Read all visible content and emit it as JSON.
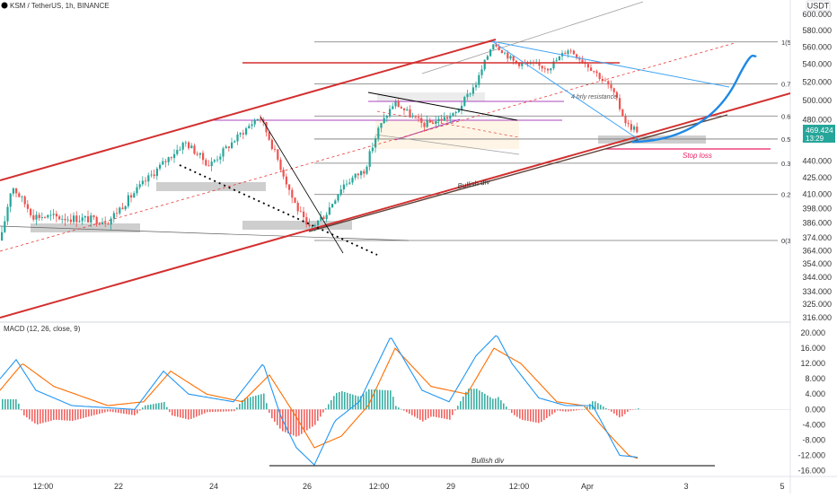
{
  "header": {
    "symbol_line": "KSM / TetherUS, 1h, BINANCE",
    "currency": "USDT"
  },
  "price_badge": {
    "price": "469.424",
    "countdown": "13:29",
    "color": "#26a69a"
  },
  "colors": {
    "up_candle": "#26a69a",
    "down_candle": "#ef5350",
    "channel": "#d32f2f",
    "trendline_blue": "#42a5f5",
    "projection": "#1e88e5",
    "macd_line": "#2196f3",
    "signal_line": "#ff6d00",
    "resistance": "#ab47bc",
    "stop_loss": "#e91e63"
  },
  "chart_data": [
    {
      "type": "candlestick",
      "panel": "price",
      "title": "KSM / TetherUS, 1h, BINANCE",
      "currency": "USDT",
      "y_axis": {
        "range": [
          312,
          612
        ],
        "ticks": [
          600,
          580,
          560,
          540,
          520,
          500,
          480,
          460,
          440,
          425,
          410,
          398,
          386,
          374,
          364,
          354,
          344,
          334,
          325,
          316
        ],
        "scale": "log"
      },
      "x_axis": {
        "ticks": [
          "12:00",
          "22",
          "24",
          "26",
          "12:00",
          "29",
          "12:00",
          "Apr",
          "3",
          "5"
        ]
      },
      "price_path_keypoints": [
        [
          0,
          372
        ],
        [
          12,
          418
        ],
        [
          36,
          392
        ],
        [
          120,
          388
        ],
        [
          205,
          458
        ],
        [
          232,
          436
        ],
        [
          288,
          484
        ],
        [
          325,
          406
        ],
        [
          342,
          380
        ],
        [
          362,
          394
        ],
        [
          380,
          418
        ],
        [
          405,
          432
        ],
        [
          420,
          470
        ],
        [
          438,
          498
        ],
        [
          470,
          475
        ],
        [
          505,
          485
        ],
        [
          530,
          520
        ],
        [
          548,
          566
        ],
        [
          572,
          542
        ],
        [
          610,
          536
        ],
        [
          632,
          558
        ],
        [
          660,
          533
        ],
        [
          680,
          512
        ],
        [
          697,
          475
        ],
        [
          710,
          469.4
        ]
      ],
      "fibonacci": [
        {
          "label": "1(566",
          "level": 566
        },
        {
          "label": "0.786",
          "level": 518
        },
        {
          "label": "0.618",
          "level": 484
        },
        {
          "label": "0.5(4",
          "level": 461
        },
        {
          "label": "0.382",
          "level": 438
        },
        {
          "label": "0.236",
          "level": 410
        },
        {
          "label": "0(372",
          "level": 372
        }
      ],
      "annotations": [
        "4 hrly resistance",
        "Stop loss",
        "Bullish div"
      ]
    },
    {
      "type": "macd",
      "panel": "indicator",
      "title": "MACD (12, 26, close, 9)",
      "y_axis": {
        "range": [
          -17,
          22
        ],
        "ticks": [
          20,
          16,
          12,
          8,
          4,
          0,
          -4,
          -8,
          -12,
          -16
        ]
      },
      "macd_keypoints": [
        [
          0,
          8
        ],
        [
          18,
          13
        ],
        [
          40,
          5
        ],
        [
          80,
          1
        ],
        [
          150,
          0
        ],
        [
          182,
          10
        ],
        [
          210,
          4
        ],
        [
          260,
          2
        ],
        [
          293,
          12
        ],
        [
          313,
          -2
        ],
        [
          330,
          -10
        ],
        [
          350,
          -14.5
        ],
        [
          373,
          -3
        ],
        [
          400,
          2
        ],
        [
          435,
          19
        ],
        [
          470,
          5
        ],
        [
          500,
          2
        ],
        [
          530,
          14
        ],
        [
          553,
          19.5
        ],
        [
          570,
          12
        ],
        [
          600,
          3
        ],
        [
          630,
          1
        ],
        [
          660,
          1
        ],
        [
          690,
          -12
        ],
        [
          710,
          -12.5
        ]
      ],
      "signal_keypoints": [
        [
          0,
          5
        ],
        [
          25,
          12
        ],
        [
          60,
          6
        ],
        [
          120,
          1
        ],
        [
          160,
          2
        ],
        [
          190,
          10
        ],
        [
          230,
          4
        ],
        [
          270,
          2
        ],
        [
          300,
          9
        ],
        [
          330,
          -2
        ],
        [
          350,
          -10
        ],
        [
          380,
          -7
        ],
        [
          410,
          1
        ],
        [
          440,
          16
        ],
        [
          480,
          6
        ],
        [
          520,
          4
        ],
        [
          550,
          16
        ],
        [
          580,
          12
        ],
        [
          620,
          2
        ],
        [
          650,
          1
        ],
        [
          680,
          -7
        ],
        [
          700,
          -12
        ],
        [
          710,
          -12.8
        ]
      ],
      "annotations": [
        "Bullish div"
      ]
    }
  ]
}
